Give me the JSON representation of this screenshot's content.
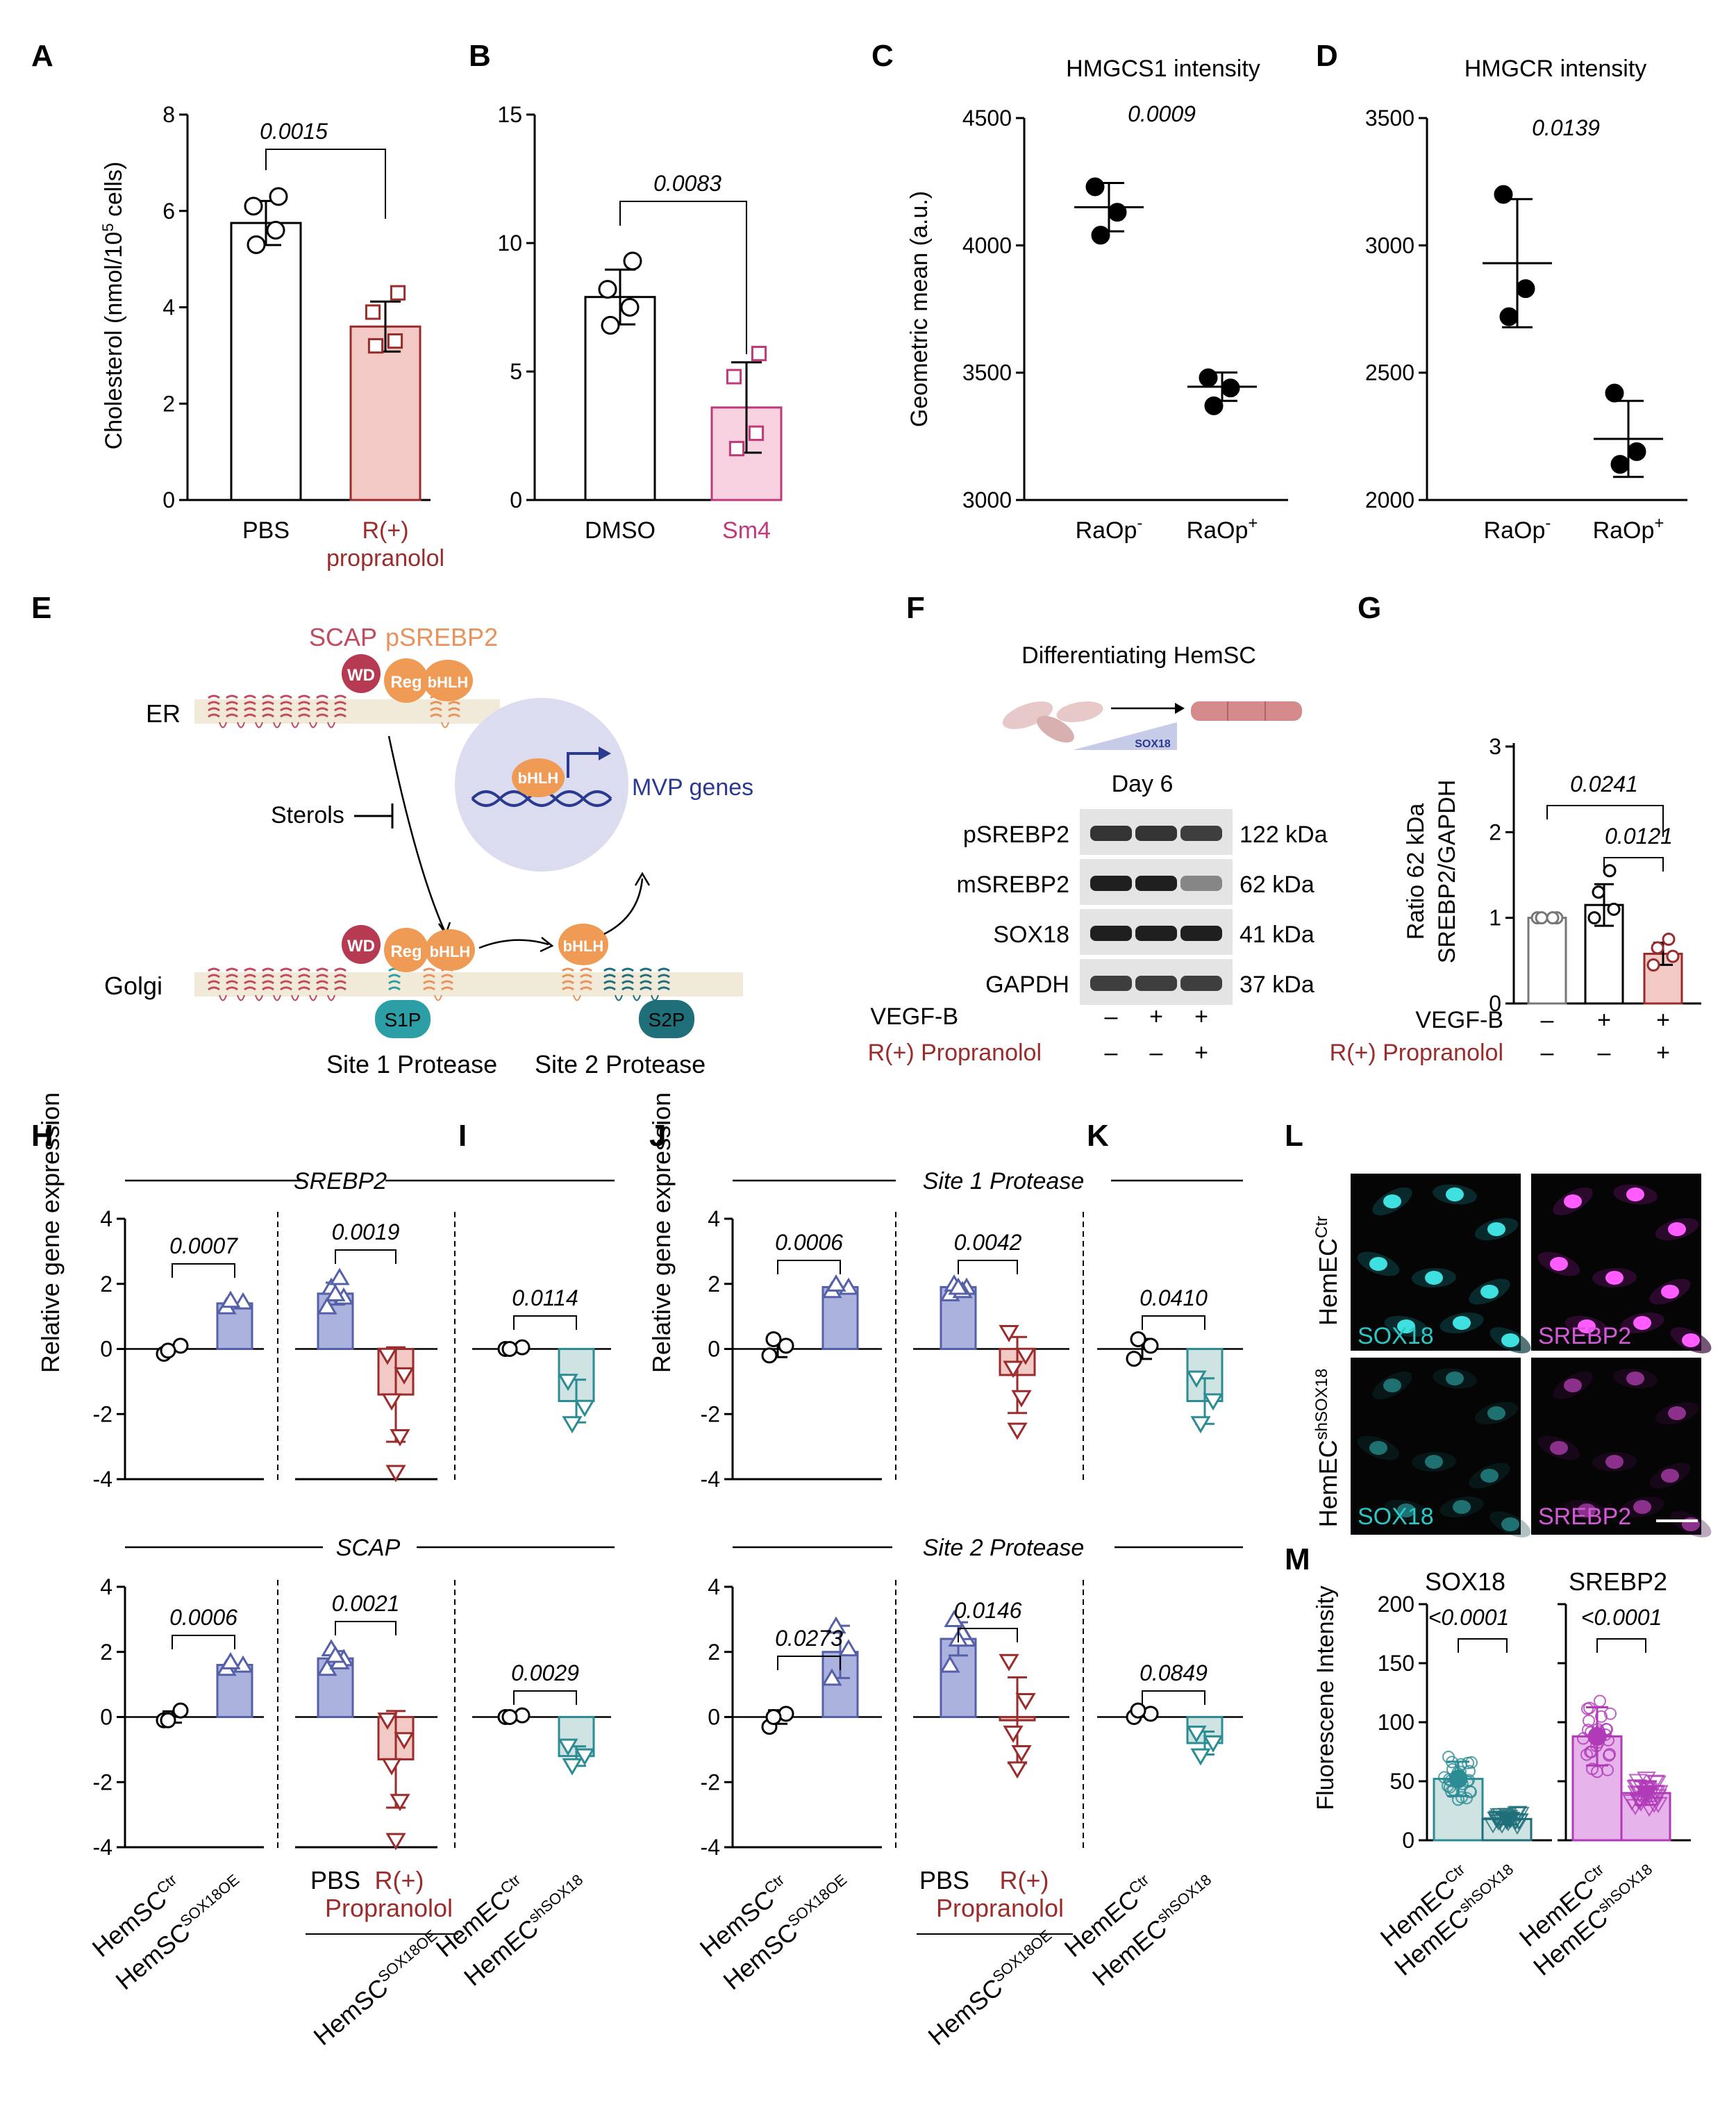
{
  "panel_letters": {
    "A": "A",
    "B": "B",
    "C": "C",
    "D": "D",
    "E": "E",
    "F": "F",
    "G": "G",
    "H": "H",
    "I": "I",
    "J": "J",
    "K": "K",
    "L": "L",
    "M": "M"
  },
  "colors": {
    "blue_fill": "#aab2dd",
    "blue_stroke": "#5560a8",
    "red_fill": "#f2c9c4",
    "red_stroke": "#9b2c2c",
    "pink_fill": "#f7d1df",
    "pink_stroke": "#c0397a",
    "teal_fill": "#cfe3e2",
    "teal_stroke": "#2c8c94",
    "teal_dark": "#1f6f7a",
    "magenta": "#b03ab8",
    "magenta_fill": "#e6b3ea",
    "salmon": "#e8925c",
    "rose": "#c24a5e",
    "lavender": "#dcdcf0",
    "sox18_color": "#2bc6c6",
    "srebp2_color": "#d25ad6"
  },
  "panelA": {
    "ylabel_pre": "Cholesterol (nmol/10",
    "ylabel_sup": "5",
    "ylabel_post": " cells)",
    "pvalue": "0.0015",
    "ticks": [
      "0",
      "2",
      "4",
      "6",
      "8"
    ],
    "cat1": "PBS",
    "cat2_line1": "R(+)",
    "cat2_line2": "propranolol"
  },
  "panelB": {
    "pvalue": "0.0083",
    "ticks": [
      "0",
      "5",
      "10",
      "15"
    ],
    "cat1": "DMSO",
    "cat2": "Sm4"
  },
  "panelC": {
    "title": "HMGCS1 intensity",
    "pvalue": "0.0009",
    "ylabel": "Geometric mean (a.u.)",
    "ticks": [
      "3000",
      "3500",
      "4000",
      "4500"
    ],
    "cat1": "RaOp",
    "cat1_sup": "-",
    "cat2": "RaOp",
    "cat2_sup": "+"
  },
  "panelD": {
    "title": "HMGCR intensity",
    "pvalue": "0.0139",
    "ticks": [
      "2000",
      "2500",
      "3000",
      "3500"
    ],
    "cat1": "RaOp",
    "cat1_sup": "-",
    "cat2": "RaOp",
    "cat2_sup": "+"
  },
  "panelE": {
    "scap": "SCAP",
    "psrebp2": "pSREBP2",
    "er": "ER",
    "golgi": "Golgi",
    "sterols": "Sterols",
    "mvp": "MVP genes",
    "wd": "WD",
    "reg": "Reg",
    "bhlh": "bHLH",
    "s1p": "S1P",
    "s2p": "S2P",
    "site1": "Site 1 Protease",
    "site2": "Site 2 Protease"
  },
  "panelF": {
    "title": "Differentiating HemSC",
    "sox18_tag": "SOX18",
    "day": "Day 6",
    "rows": [
      {
        "name": "pSREBP2",
        "kda": "122 kDa"
      },
      {
        "name": "mSREBP2",
        "kda": "62 kDa"
      },
      {
        "name": "SOX18",
        "kda": "41 kDa"
      },
      {
        "name": "GAPDH",
        "kda": "37 kDa"
      }
    ],
    "vegf_label": "VEGF-B",
    "vegf_signs": [
      "–",
      "+",
      "+"
    ],
    "prop_label": "R(+) Propranolol",
    "prop_signs": [
      "–",
      "–",
      "+"
    ]
  },
  "panelG": {
    "ylabel1": "Ratio 62 kDa",
    "ylabel2": "SREBP2/GAPDH",
    "ticks": [
      "0",
      "1",
      "2",
      "3"
    ],
    "p1": "0.0241",
    "p2": "0.0121",
    "vegf_label": "VEGF-B",
    "vegf_signs": [
      "–",
      "+",
      "+"
    ],
    "prop_label": "R(+) Propranolol",
    "prop_signs": [
      "–",
      "–",
      "+"
    ]
  },
  "panelH": {
    "gene_top": "SREBP2",
    "gene_bottom": "SCAP",
    "p_top_sox": "0.0007",
    "p_top_prop": "0.0019",
    "p_bot_sox": "0.0006",
    "p_bot_prop": "0.0021",
    "ylabel": "Relative gene expression",
    "ticks": [
      "-4",
      "-2",
      "0",
      "2",
      "4"
    ]
  },
  "panelI": {
    "p_top": "0.0114",
    "p_bot": "0.0029"
  },
  "panelJ": {
    "gene_top": "Site 1 Protease",
    "gene_bottom": "Site 2 Protease",
    "p_top_sox": "0.0006",
    "p_top_prop": "0.0042",
    "p_bot_sox": "0.0273",
    "p_bot_prop": "0.0146",
    "ylabel": "Relative gene expression",
    "ticks": [
      "-4",
      "-2",
      "0",
      "2",
      "4"
    ]
  },
  "panelK": {
    "p_top": "0.0410",
    "p_bot": "0.0849"
  },
  "xlabels": {
    "hemsc": "HemSC",
    "ctr": "Ctr",
    "sox18oe": "SOX18OE",
    "pbs": "PBS",
    "rplus": "R(+)",
    "propranolol": "Propranolol",
    "hemec": "HemEC",
    "shsox18": "shSOX18"
  },
  "panelL": {
    "row1_label": "HemEC",
    "row1_sup": "Ctr",
    "row2_label": "HemEC",
    "row2_sup": "shSOX18",
    "sox18": "SOX18",
    "srebp2": "SREBP2"
  },
  "panelM": {
    "title1": "SOX18",
    "title2": "SREBP2",
    "p1": "<0.0001",
    "p2": "<0.0001",
    "ylabel": "Fluorescene Intensity",
    "ticks": [
      "0",
      "50",
      "100",
      "150",
      "200"
    ]
  },
  "chart_data": [
    {
      "type": "bar",
      "panel": "A",
      "categories": [
        "PBS",
        "R(+) propranolol"
      ],
      "values": [
        5.75,
        3.6
      ],
      "points": [
        [
          5.3,
          5.6,
          6.1,
          6.3
        ],
        [
          3.2,
          3.3,
          3.9,
          4.3
        ]
      ],
      "ylabel": "Cholesterol (nmol/10^5 cells)",
      "ylim": [
        0,
        8
      ],
      "pvalue": "0.0015"
    },
    {
      "type": "bar",
      "panel": "B",
      "categories": [
        "DMSO",
        "Sm4"
      ],
      "values": [
        7.9,
        3.6
      ],
      "points": [
        [
          6.8,
          7.5,
          8.2,
          9.3
        ],
        [
          2.0,
          2.6,
          4.8,
          5.7
        ]
      ],
      "ylim": [
        0,
        15
      ],
      "pvalue": "0.0083"
    },
    {
      "type": "scatter",
      "panel": "C",
      "categories": [
        "RaOp-",
        "RaOp+"
      ],
      "means": [
        4150,
        3445
      ],
      "points": [
        [
          4040,
          4130,
          4230
        ],
        [
          3370,
          3440,
          3480
        ]
      ],
      "ylabel": "Geometric mean (a.u.)",
      "ylim": [
        3000,
        4500
      ],
      "title": "HMGCS1 intensity",
      "pvalue": "0.0009"
    },
    {
      "type": "scatter",
      "panel": "D",
      "categories": [
        "RaOp-",
        "RaOp+"
      ],
      "means": [
        2930,
        2240
      ],
      "points": [
        [
          2720,
          2830,
          3200
        ],
        [
          2140,
          2190,
          2420
        ]
      ],
      "ylim": [
        2000,
        3500
      ],
      "title": "HMGCR intensity",
      "pvalue": "0.0139"
    },
    {
      "type": "bar",
      "panel": "G",
      "categories": [
        "VEGF-B –/R(+) –",
        "VEGF-B +/R(+) –",
        "VEGF-B +/R(+) +"
      ],
      "values": [
        1.0,
        1.15,
        0.58
      ],
      "points": [
        [
          1,
          1,
          1,
          1
        ],
        [
          1.0,
          1.1,
          1.3,
          1.55
        ],
        [
          0.45,
          0.55,
          0.65,
          0.75
        ]
      ],
      "ylabel": "Ratio 62 kDa SREBP2/GAPDH",
      "ylim": [
        0,
        3
      ],
      "pvalues": [
        "0.0241",
        "0.0121"
      ]
    },
    {
      "type": "bar",
      "panel": "H",
      "gene": "SREBP2",
      "groups": [
        {
          "categories": [
            "HemSC Ctr",
            "HemSC SOX18OE"
          ],
          "values": [
            0,
            1.4
          ],
          "pvalue": "0.0007"
        },
        {
          "categories": [
            "PBS",
            "R(+) Propranolol"
          ],
          "values": [
            1.7,
            -1.4
          ],
          "pvalue": "0.0019"
        }
      ],
      "ylim": [
        -4,
        4
      ]
    },
    {
      "type": "bar",
      "panel": "H",
      "gene": "SCAP",
      "groups": [
        {
          "categories": [
            "HemSC Ctr",
            "HemSC SOX18OE"
          ],
          "values": [
            0,
            1.6
          ],
          "pvalue": "0.0006"
        },
        {
          "categories": [
            "PBS",
            "R(+) Propranolol"
          ],
          "values": [
            1.8,
            -1.3
          ],
          "pvalue": "0.0021"
        }
      ],
      "ylim": [
        -4,
        4
      ]
    },
    {
      "type": "bar",
      "panel": "I",
      "gene": "SREBP2",
      "categories": [
        "HemEC Ctr",
        "HemEC shSOX18"
      ],
      "values": [
        0,
        -1.6
      ],
      "pvalue": "0.0114",
      "ylim": [
        -4,
        4
      ]
    },
    {
      "type": "bar",
      "panel": "I",
      "gene": "SCAP",
      "categories": [
        "HemEC Ctr",
        "HemEC shSOX18"
      ],
      "values": [
        0,
        -1.2
      ],
      "pvalue": "0.0029",
      "ylim": [
        -4,
        4
      ]
    },
    {
      "type": "bar",
      "panel": "J",
      "gene": "Site 1 Protease",
      "groups": [
        {
          "categories": [
            "HemSC Ctr",
            "HemSC SOX18OE"
          ],
          "values": [
            0,
            1.9
          ],
          "pvalue": "0.0006"
        },
        {
          "categories": [
            "PBS",
            "R(+) Propranolol"
          ],
          "values": [
            1.9,
            -0.8
          ],
          "pvalue": "0.0042"
        }
      ],
      "ylim": [
        -4,
        4
      ]
    },
    {
      "type": "bar",
      "panel": "J",
      "gene": "Site 2 Protease",
      "groups": [
        {
          "categories": [
            "HemSC Ctr",
            "HemSC SOX18OE"
          ],
          "values": [
            0,
            2.0
          ],
          "pvalue": "0.0273"
        },
        {
          "categories": [
            "PBS",
            "R(+) Propranolol"
          ],
          "values": [
            2.4,
            -0.1
          ],
          "pvalue": "0.0146"
        }
      ],
      "ylim": [
        -4,
        4
      ]
    },
    {
      "type": "bar",
      "panel": "K",
      "gene": "Site 1 Protease",
      "categories": [
        "HemEC Ctr",
        "HemEC shSOX18"
      ],
      "values": [
        0,
        -1.6
      ],
      "pvalue": "0.0410",
      "ylim": [
        -4,
        4
      ]
    },
    {
      "type": "bar",
      "panel": "K",
      "gene": "Site 2 Protease",
      "categories": [
        "HemEC Ctr",
        "HemEC shSOX18"
      ],
      "values": [
        0,
        -0.8
      ],
      "pvalue": "0.0849",
      "ylim": [
        -4,
        4
      ]
    },
    {
      "type": "bar",
      "panel": "M",
      "title": "SOX18",
      "categories": [
        "HemEC Ctr",
        "HemEC shSOX18"
      ],
      "values": [
        52,
        18
      ],
      "ylim": [
        0,
        200
      ],
      "pvalue": "<0.0001"
    },
    {
      "type": "bar",
      "panel": "M",
      "title": "SREBP2",
      "categories": [
        "HemEC Ctr",
        "HemEC shSOX18"
      ],
      "values": [
        88,
        40
      ],
      "ylim": [
        0,
        200
      ],
      "pvalue": "<0.0001"
    }
  ]
}
